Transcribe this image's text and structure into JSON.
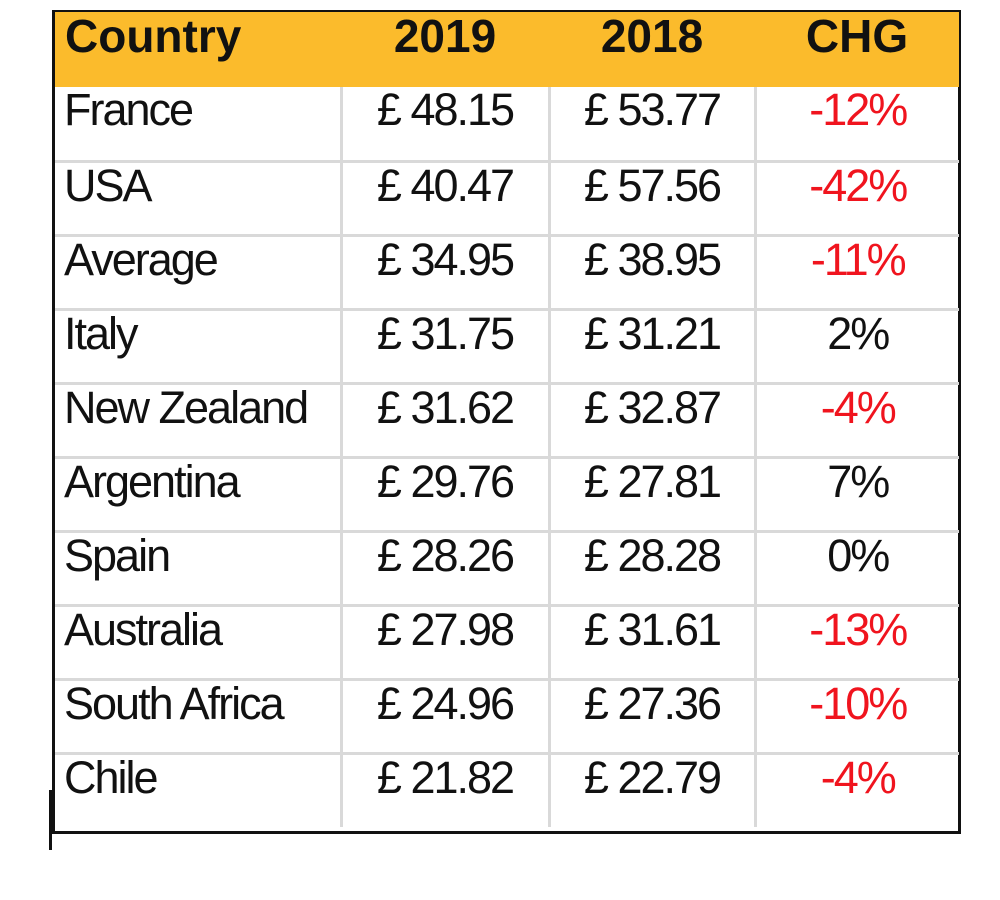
{
  "header_color": "#fbbb2c",
  "negative_color": "#f0141e",
  "chart_data": {
    "type": "table",
    "columns": [
      "Country",
      "2019",
      "2018",
      "CHG"
    ],
    "rows": [
      {
        "country": "France",
        "y2019": "£ 48.15",
        "y2018": "£ 53.77",
        "chg": "-12%"
      },
      {
        "country": "USA",
        "y2019": "£ 40.47",
        "y2018": "£ 57.56",
        "chg": "-42%"
      },
      {
        "country": "Average",
        "y2019": "£ 34.95",
        "y2018": "£ 38.95",
        "chg": "-11%"
      },
      {
        "country": "Italy",
        "y2019": "£ 31.75",
        "y2018": "£ 31.21",
        "chg": "2%"
      },
      {
        "country": "New Zealand",
        "y2019": "£ 31.62",
        "y2018": "£ 32.87",
        "chg": "-4%"
      },
      {
        "country": "Argentina",
        "y2019": "£ 29.76",
        "y2018": "£ 27.81",
        "chg": "7%"
      },
      {
        "country": "Spain",
        "y2019": "£ 28.26",
        "y2018": "£ 28.28",
        "chg": "0%"
      },
      {
        "country": "Australia",
        "y2019": "£ 27.98",
        "y2018": "£ 31.61",
        "chg": "-13%"
      },
      {
        "country": "South Africa",
        "y2019": "£ 24.96",
        "y2018": "£ 27.36",
        "chg": "-10%"
      },
      {
        "country": "Chile",
        "y2019": "£ 21.82",
        "y2018": "£ 22.79",
        "chg": "-4%"
      }
    ]
  }
}
